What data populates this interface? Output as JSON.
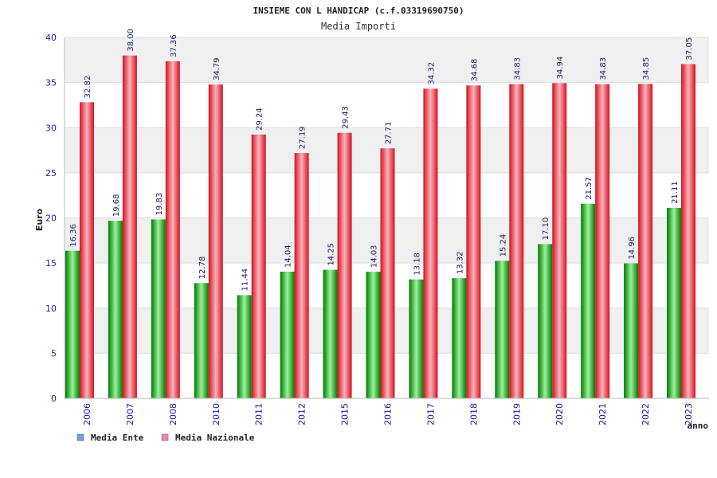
{
  "chart_data": {
    "type": "bar",
    "title": "INSIEME CON L HANDICAP (c.f.03319690750)",
    "subtitle": "Media Importi",
    "xlabel": "anno",
    "ylabel": "Euro",
    "ylim": [
      0,
      40
    ],
    "yticks": [
      0,
      5,
      10,
      15,
      20,
      25,
      30,
      35,
      40
    ],
    "categories": [
      "2006",
      "2007",
      "2008",
      "2010",
      "2011",
      "2012",
      "2015",
      "2016",
      "2017",
      "2018",
      "2019",
      "2020",
      "2021",
      "2022",
      "2023"
    ],
    "series": [
      {
        "name": "Media Ente",
        "values": [
          16.36,
          19.68,
          19.83,
          12.78,
          11.44,
          14.04,
          14.25,
          14.03,
          13.18,
          13.32,
          15.24,
          17.1,
          21.57,
          14.96,
          21.11
        ],
        "labels": [
          "16.36",
          "19.68",
          "19.83",
          "12.78",
          "11.44",
          "14.04",
          "14.25",
          "14.03",
          "13.18",
          "13.32",
          "15.24",
          "17.10",
          "21.57",
          "14.96",
          "21.11"
        ]
      },
      {
        "name": "Media Nazionale",
        "values": [
          32.82,
          38.0,
          37.36,
          34.79,
          29.24,
          27.19,
          29.43,
          27.71,
          34.32,
          34.68,
          34.83,
          34.94,
          34.83,
          34.85,
          37.05
        ],
        "labels": [
          "32.82",
          "38.00",
          "37.36",
          "34.79",
          "29.24",
          "27.19",
          "29.43",
          "27.71",
          "34.32",
          "34.68",
          "34.83",
          "34.94",
          "34.83",
          "34.85",
          "37.05"
        ]
      }
    ],
    "legend": {
      "placement": "bottom-left",
      "items": [
        {
          "label": "Media Ente",
          "color": "#66a3e6"
        },
        {
          "label": "Media Nazionale",
          "color": "#e688b8"
        }
      ]
    },
    "colors": {
      "ente": "#00bb00",
      "ente_light": "#9af29a",
      "nazionale": "#ee1b33",
      "nazionale_light": "#f7b3bb",
      "band": "#f0f0f0",
      "grid": "#dddddd",
      "tick": "#1a1aa6"
    }
  }
}
